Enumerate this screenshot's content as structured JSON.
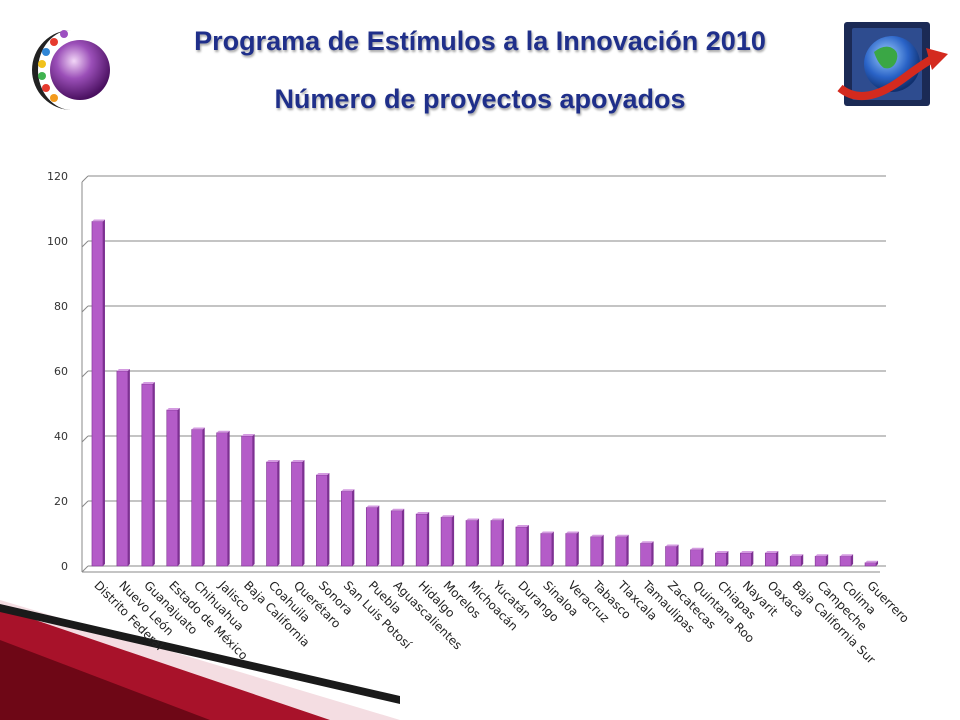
{
  "header": {
    "title": "Programa de Estímulos a la Innovación 2010",
    "subtitle": "Número de proyectos apoyados"
  },
  "logos": {
    "left": "sphere-logo-icon",
    "right": "globe-arrow-logo-icon"
  },
  "colors": {
    "title": "#1f2f8a",
    "bar": "#b45cc8",
    "bar_dark": "#7d3192",
    "bar_top": "#d39ae0",
    "ribbon": "#8b0a1e"
  },
  "chart_data": {
    "type": "bar",
    "categories": [
      "Distrito Federal",
      "Nuevo León",
      "Guanajuato",
      "Estado de México",
      "Chihuahua",
      "Jalisco",
      "Baja California",
      "Coahuila",
      "Querétaro",
      "Sonora",
      "San Luis Potosí",
      "Puebla",
      "Aguascalientes",
      "Hidalgo",
      "Morelos",
      "Michoacán",
      "Yucatán",
      "Durango",
      "Sinaloa",
      "Veracruz",
      "Tabasco",
      "Tlaxcala",
      "Tamaulipas",
      "Zacatecas",
      "Quintana Roo",
      "Chiapas",
      "Nayarit",
      "Oaxaca",
      "Baja California Sur",
      "Campeche",
      "Colima",
      "Guerrero"
    ],
    "values": [
      106,
      60,
      56,
      48,
      42,
      41,
      40,
      32,
      32,
      28,
      23,
      18,
      17,
      16,
      15,
      14,
      14,
      12,
      10,
      10,
      9,
      9,
      7,
      6,
      5,
      4,
      4,
      4,
      3,
      3,
      3,
      1
    ],
    "ylim": [
      0,
      120
    ],
    "yticks": [
      0,
      20,
      40,
      60,
      80,
      100,
      120
    ],
    "grid": true,
    "legend": "none"
  }
}
